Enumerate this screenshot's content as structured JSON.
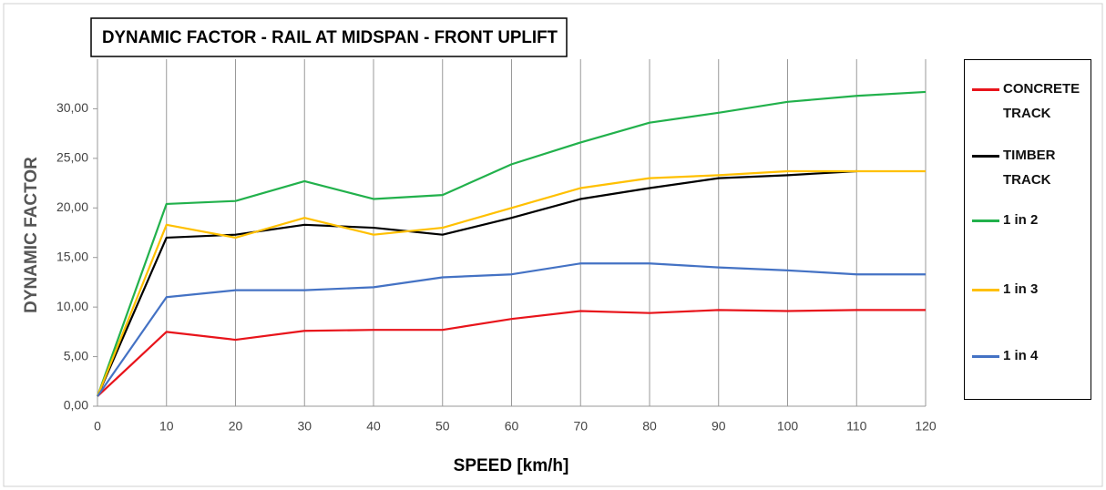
{
  "chart_data": {
    "type": "line",
    "title": "DYNAMIC FACTOR - RAIL AT MIDSPAN -  FRONT UPLIFT",
    "x_label": "SPEED [km/h]",
    "y_label": "DYNAMIC FACTOR",
    "x": [
      0,
      10,
      20,
      30,
      40,
      50,
      60,
      70,
      80,
      90,
      100,
      110,
      120
    ],
    "series": [
      {
        "name": "CONCRETE TRACK",
        "color": "#e8141b",
        "values": [
          1.0,
          7.5,
          6.7,
          7.6,
          7.7,
          7.7,
          8.8,
          9.6,
          9.4,
          9.7,
          9.6,
          9.7,
          9.7
        ]
      },
      {
        "name": "TIMBER TRACK",
        "color": "#000000",
        "values": [
          1.0,
          17.0,
          17.3,
          18.3,
          18.0,
          17.3,
          19.0,
          20.9,
          22.0,
          23.0,
          23.3,
          23.7,
          null
        ]
      },
      {
        "name": "1 in 2",
        "color": "#22b14c",
        "values": [
          1.0,
          20.4,
          20.7,
          22.7,
          20.9,
          21.3,
          24.4,
          26.6,
          28.6,
          29.6,
          30.7,
          31.3,
          31.7
        ]
      },
      {
        "name": "1 in 3",
        "color": "#ffc000",
        "values": [
          1.0,
          18.3,
          17.0,
          19.0,
          17.3,
          18.0,
          20.0,
          22.0,
          23.0,
          23.3,
          23.7,
          23.7,
          23.7
        ]
      },
      {
        "name": "1 in 4",
        "color": "#4472c4",
        "values": [
          1.0,
          11.0,
          11.7,
          11.7,
          12.0,
          13.0,
          13.3,
          14.4,
          14.4,
          14.0,
          13.7,
          13.3,
          13.3
        ]
      }
    ],
    "xlim": [
      0,
      120
    ],
    "xticks": [
      0,
      10,
      20,
      30,
      40,
      50,
      60,
      70,
      80,
      90,
      100,
      110,
      120
    ],
    "ylim": [
      0,
      35
    ],
    "yticks": [
      {
        "value": 0,
        "label": "0,00"
      },
      {
        "value": 5,
        "label": "5,00"
      },
      {
        "value": 10,
        "label": "10,00"
      },
      {
        "value": 15,
        "label": "15,00"
      },
      {
        "value": 20,
        "label": "20,00"
      },
      {
        "value": 25,
        "label": "25,00"
      },
      {
        "value": 30,
        "label": "30,00"
      }
    ],
    "grid": "x",
    "legend": "right"
  }
}
